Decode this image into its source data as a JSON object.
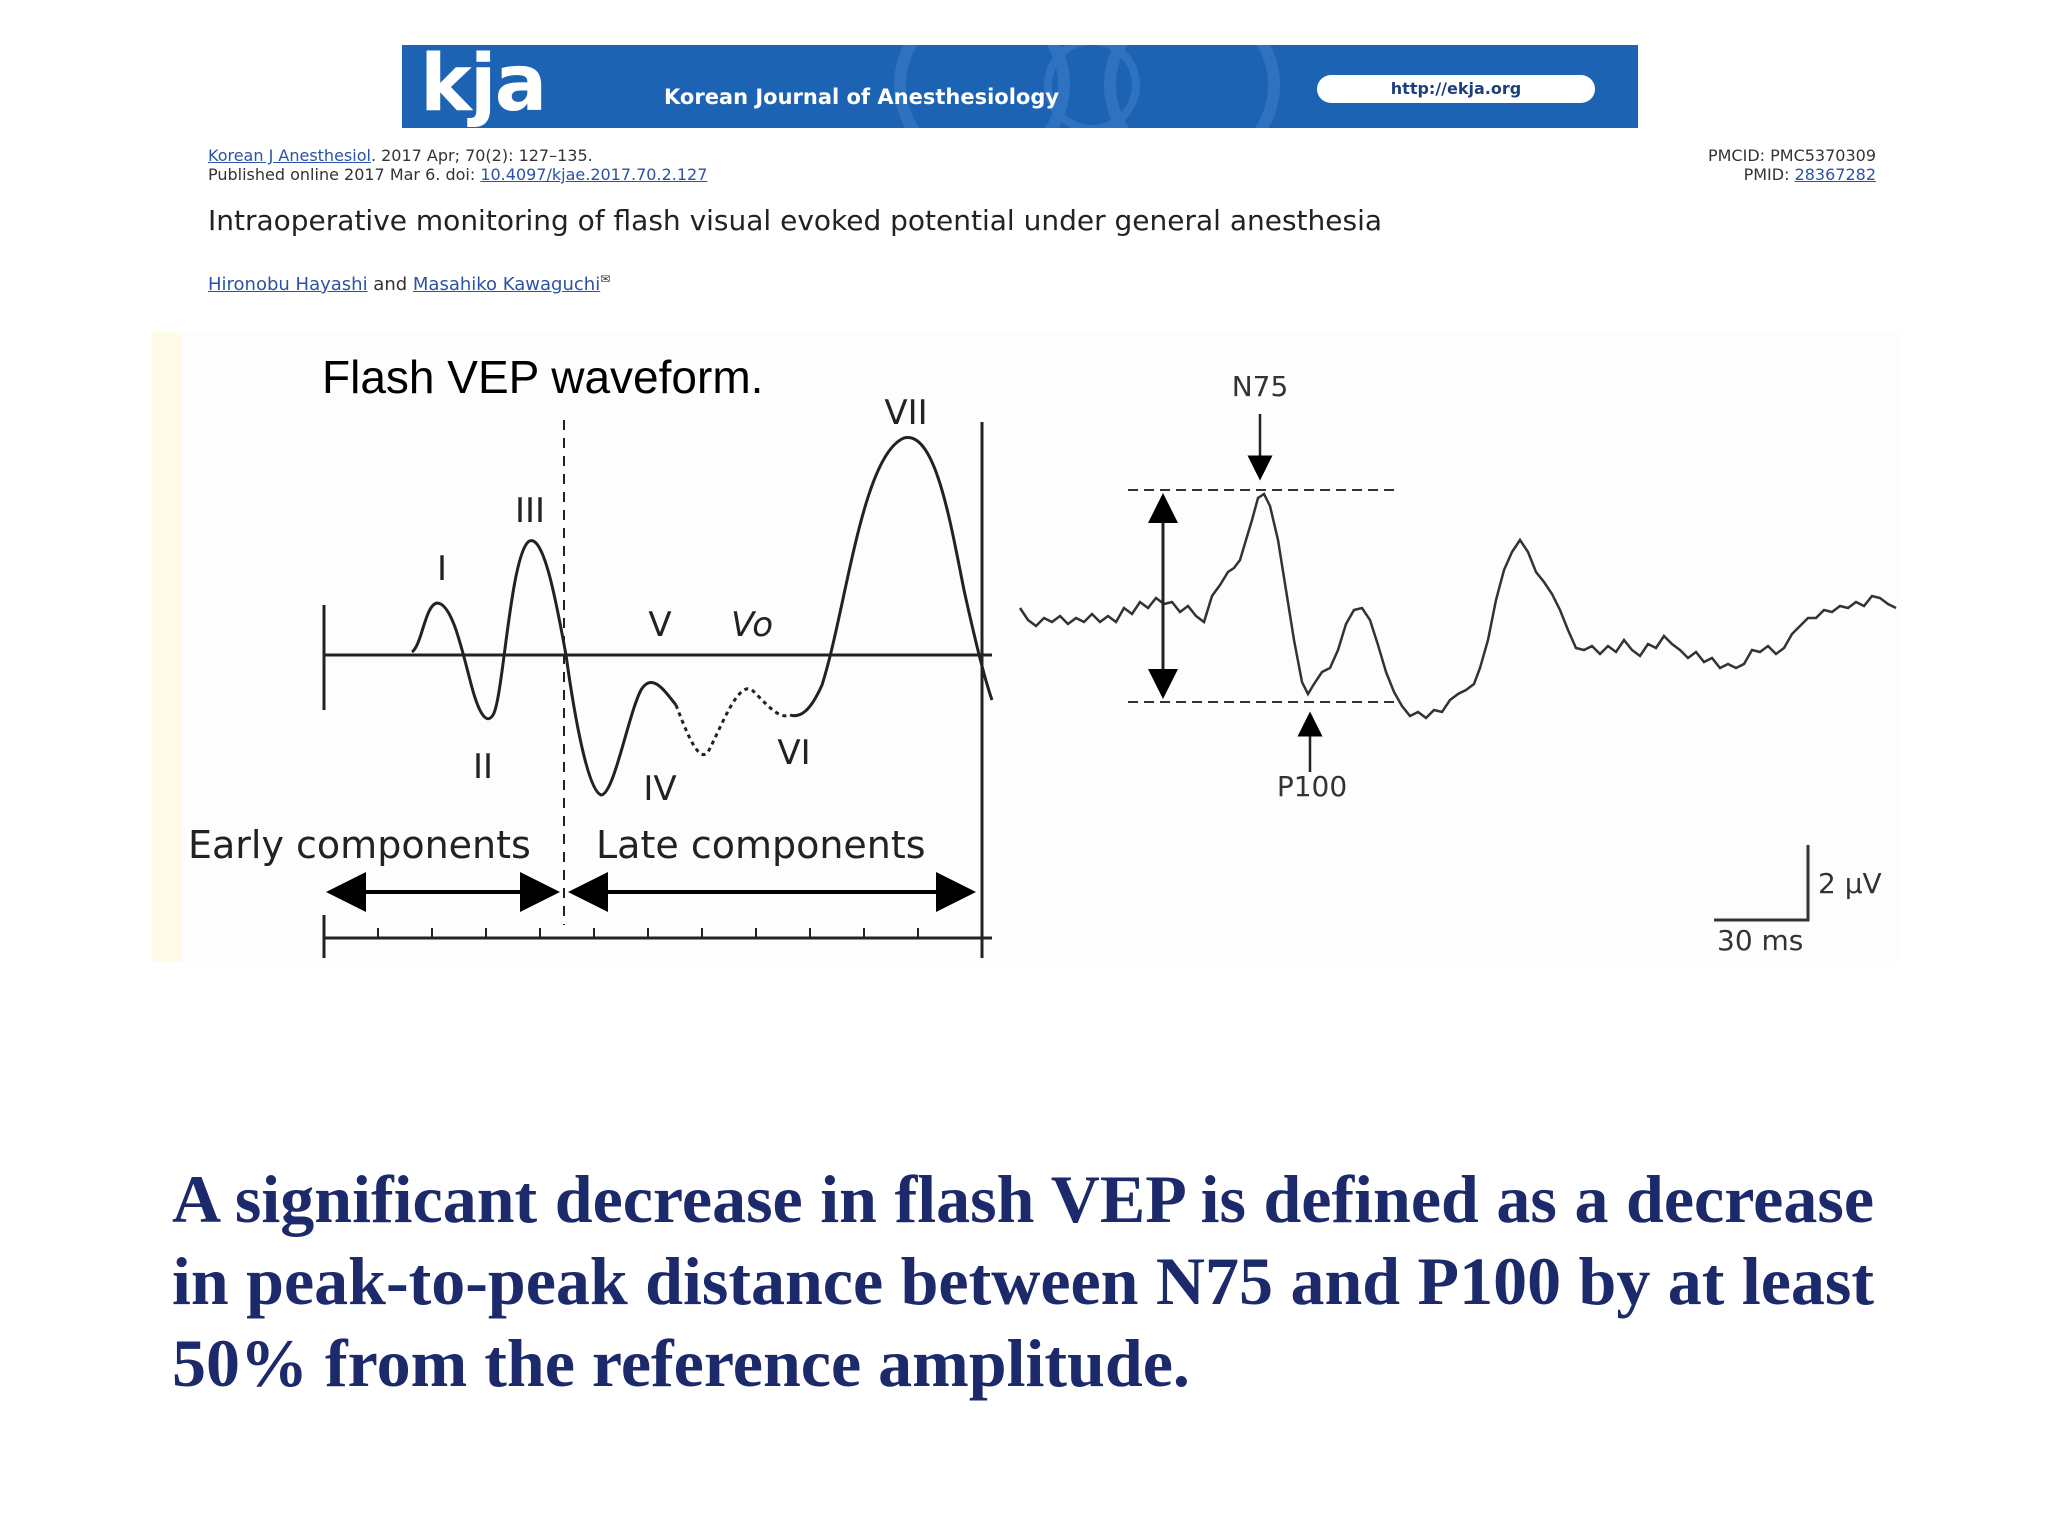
{
  "banner": {
    "logo": "kja",
    "journal_name": "Korean Journal of Anesthesiology",
    "url": "http://ekja.org"
  },
  "citation": {
    "journal_link": "Korean J Anesthesiol",
    "issue": ". 2017 Apr; 70(2): 127–135.",
    "published": "Published online 2017 Mar 6. doi: ",
    "doi": "10.4097/kjae.2017.70.2.127",
    "pmcid": "PMCID: PMC5370309",
    "pmid_label": "PMID: ",
    "pmid": "28367282"
  },
  "article": {
    "title": "Intraoperative monitoring of flash visual evoked potential under general anesthesia",
    "author1": "Hironobu Hayashi",
    "and": " and ",
    "author2": "Masahiko Kawaguchi"
  },
  "figure": {
    "caption": "Flash VEP waveform.",
    "left": {
      "components": [
        "I",
        "II",
        "III",
        "IV",
        "V",
        "Vo",
        "VI",
        "VII"
      ],
      "early_label": "Early components",
      "late_label": "Late components"
    },
    "right": {
      "peak_top": "N75",
      "peak_bottom": "P100",
      "scale_amplitude": "2 µV",
      "scale_time": "30 ms"
    }
  },
  "summary": "A significant decrease in flash VEP is defined as a decrease in peak-to-peak distance between N75 and P100 by at least 50% from the reference amplitude.",
  "colors": {
    "banner": "#1d63b3",
    "link": "#2a52a8",
    "summary_text": "#1c2a6b",
    "panel_stripe": "#fefbe8"
  }
}
